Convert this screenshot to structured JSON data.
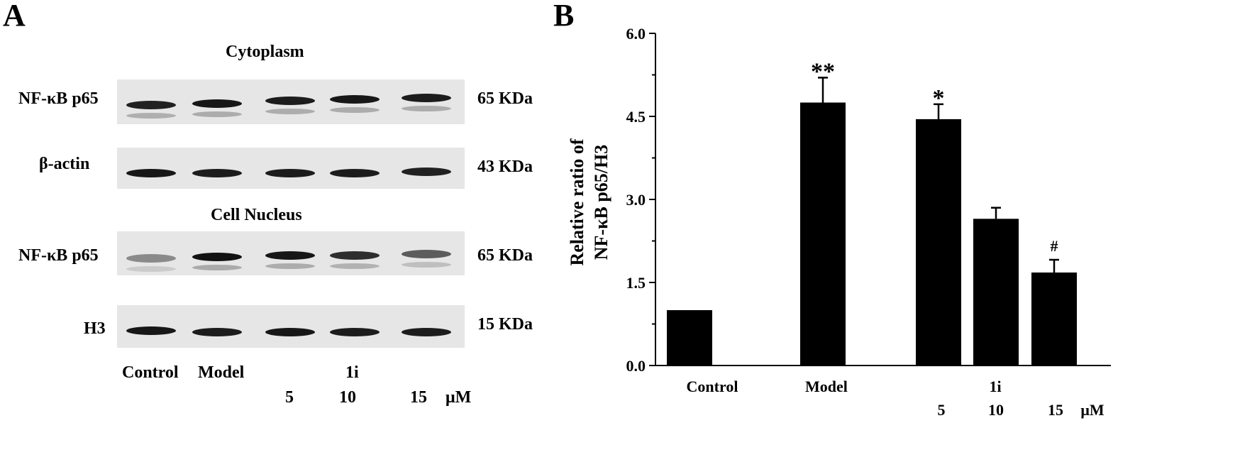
{
  "panel_a": {
    "letter": "A",
    "cytoplasm_title": "Cytoplasm",
    "nucleus_title": "Cell Nucleus",
    "blots": [
      {
        "protein": "NF-κB p65",
        "size": "65 KDa",
        "intensities": [
          0.86,
          0.9,
          0.88,
          0.9,
          0.88
        ]
      },
      {
        "protein": "β-actin",
        "size": "43 KDa",
        "intensities": [
          0.9,
          0.88,
          0.88,
          0.88,
          0.86
        ]
      },
      {
        "protein": "NF-κB p65",
        "size": "65 KDa",
        "intensities": [
          0.4,
          0.92,
          0.9,
          0.8,
          0.6
        ]
      },
      {
        "protein": "H3",
        "size": "15 KDa",
        "intensities": [
          0.9,
          0.88,
          0.9,
          0.88,
          0.88
        ]
      }
    ],
    "groups": [
      "Control",
      "Model",
      "1i"
    ],
    "doses": [
      "5",
      "10",
      "15",
      "μM"
    ]
  },
  "panel_b": {
    "letter": "B"
  },
  "chart_data": {
    "type": "bar",
    "ylabel_line1": "Relative ratio of",
    "ylabel_line2": "NF-κB p65/H3",
    "ylim": [
      0,
      6.0
    ],
    "yticks": [
      "0.0",
      "1.5",
      "3.0",
      "4.5",
      "6.0"
    ],
    "bars": [
      {
        "group": "Control",
        "value": 1.0,
        "error": 0,
        "annotation": ""
      },
      {
        "group": "Model",
        "value": 4.75,
        "error": 0.45,
        "annotation": "**"
      },
      {
        "group": "1i",
        "dose": "5",
        "value": 4.45,
        "error": 0.27,
        "annotation": "*"
      },
      {
        "group": "1i",
        "dose": "10",
        "value": 2.65,
        "error": 0.2,
        "annotation": ""
      },
      {
        "group": "1i",
        "dose": "15",
        "value": 1.68,
        "error": 0.23,
        "annotation": "#"
      }
    ],
    "x_group_labels": [
      "Control",
      "Model",
      "1i"
    ],
    "x_dose_labels": [
      "5",
      "10",
      "15",
      "μM"
    ],
    "bar_color": "#000000"
  }
}
